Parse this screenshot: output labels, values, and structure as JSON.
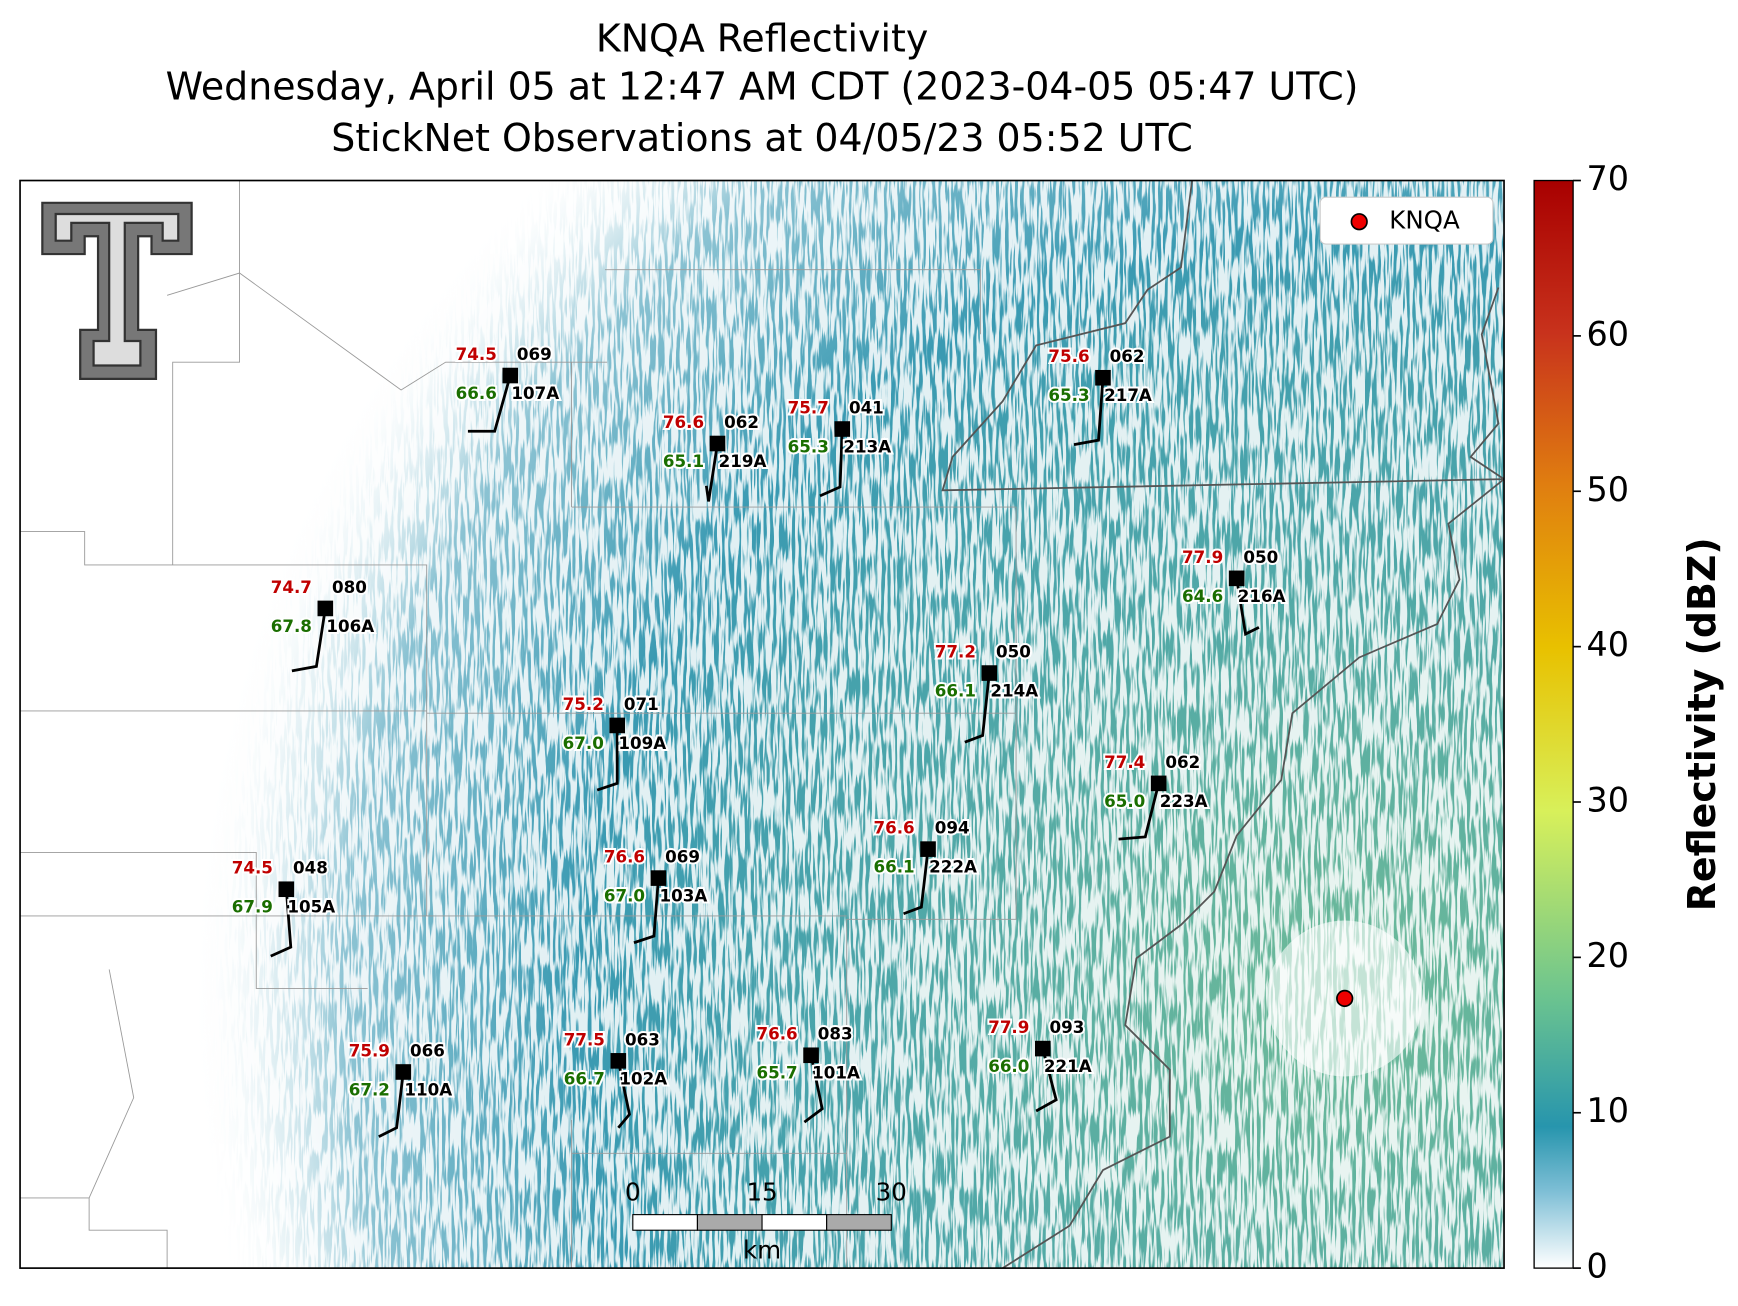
{
  "header": {
    "title": "KNQA Reflectivity",
    "subtitle": "Wednesday, April 05 at 12:47 AM CDT (2023-04-05 05:47 UTC)",
    "observations": "StickNet Observations at 04/05/23 05:52 UTC"
  },
  "legend": {
    "label": "KNQA"
  },
  "colorbar": {
    "label": "Reflectivity (dBZ)",
    "lim": [
      0,
      70
    ],
    "ticks": [
      0,
      10,
      20,
      30,
      40,
      50,
      60,
      70
    ]
  },
  "scale_bar": {
    "ticks": [
      0,
      15,
      30
    ],
    "unit": "km"
  },
  "stations": [
    {
      "id": "107A",
      "temperature": "74.5",
      "dewpoint": "66.6",
      "code": "069"
    },
    {
      "id": "219A",
      "temperature": "76.6",
      "dewpoint": "65.1",
      "code": "062"
    },
    {
      "id": "213A",
      "temperature": "75.7",
      "dewpoint": "65.3",
      "code": "041"
    },
    {
      "id": "217A",
      "temperature": "75.6",
      "dewpoint": "65.3",
      "code": "062"
    },
    {
      "id": "216A",
      "temperature": "77.9",
      "dewpoint": "64.6",
      "code": "050"
    },
    {
      "id": "106A",
      "temperature": "74.7",
      "dewpoint": "67.8",
      "code": "080"
    },
    {
      "id": "214A",
      "temperature": "77.2",
      "dewpoint": "66.1",
      "code": "050"
    },
    {
      "id": "109A",
      "temperature": "75.2",
      "dewpoint": "67.0",
      "code": "071"
    },
    {
      "id": "223A",
      "temperature": "77.4",
      "dewpoint": "65.0",
      "code": "062"
    },
    {
      "id": "222A",
      "temperature": "76.6",
      "dewpoint": "66.1",
      "code": "094"
    },
    {
      "id": "103A",
      "temperature": "76.6",
      "dewpoint": "67.0",
      "code": "069"
    },
    {
      "id": "105A",
      "temperature": "74.5",
      "dewpoint": "67.9",
      "code": "048"
    },
    {
      "id": "110A",
      "temperature": "75.9",
      "dewpoint": "67.2",
      "code": "066"
    },
    {
      "id": "102A",
      "temperature": "77.5",
      "dewpoint": "66.7",
      "code": "063"
    },
    {
      "id": "101A",
      "temperature": "76.6",
      "dewpoint": "65.7",
      "code": "083"
    },
    {
      "id": "221A",
      "temperature": "77.9",
      "dewpoint": "66.0",
      "code": "093"
    }
  ]
}
